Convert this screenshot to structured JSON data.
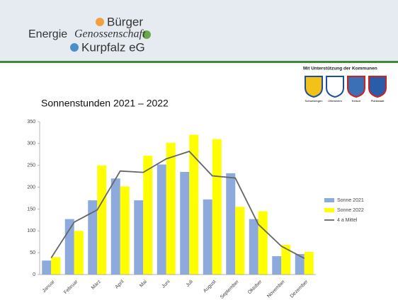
{
  "header": {
    "logo_1": "Bürger",
    "logo_2": "Energie",
    "logo_3": "Genossenschaft",
    "logo_4": "Kurpfalz eG",
    "support": "Mit Unterstützung der Kommunen",
    "towns": [
      "Schwetzingen",
      "Oftersheim",
      "Ketsch",
      "Plankstadt"
    ]
  },
  "chart_data": {
    "type": "bar",
    "title": "Sonnenstunden 2021 – 2022",
    "categories": [
      "Januar",
      "Februar",
      "März",
      "April",
      "Mai",
      "Juni",
      "Juli",
      "August",
      "September",
      "Oktober",
      "November",
      "Dezember"
    ],
    "series": [
      {
        "name": "Sonne 2021",
        "type": "bar",
        "color": "#8eaadc",
        "values": [
          32,
          127,
          170,
          220,
          170,
          252,
          235,
          172,
          232,
          127,
          42,
          47
        ]
      },
      {
        "name": "Sonne 2022",
        "type": "bar",
        "color": "#ffff00",
        "values": [
          40,
          100,
          250,
          202,
          272,
          302,
          320,
          310,
          155,
          145,
          68,
          52
        ]
      },
      {
        "name": "4 a Mittel",
        "type": "line",
        "color": "#666666",
        "values": [
          38,
          120,
          148,
          237,
          234,
          265,
          282,
          226,
          221,
          115,
          65,
          37
        ]
      }
    ],
    "ylim": [
      0,
      350
    ],
    "yticks": [
      0,
      50,
      100,
      150,
      200,
      250,
      300,
      350
    ],
    "grid": false,
    "legend": "right"
  }
}
